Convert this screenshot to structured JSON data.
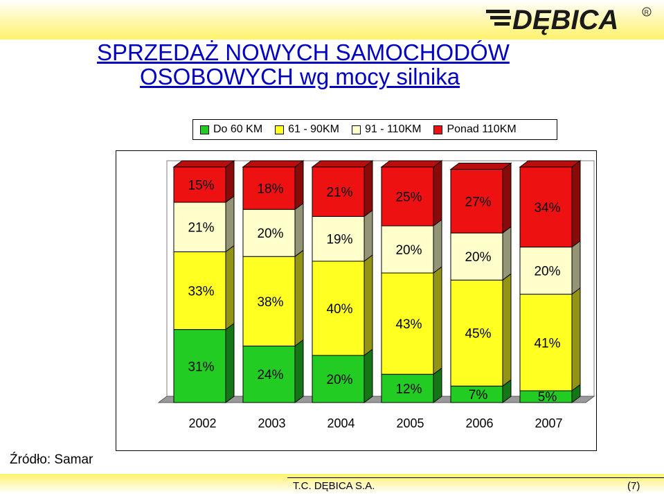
{
  "header": {
    "title_line1": "SPRZEDAŻ NOWYCH SAMOCHODÓW",
    "title_line2": "OSOBOWYCH wg mocy silnika"
  },
  "logo": {
    "text": "DĘBICA",
    "registered": "R"
  },
  "source": "Źródło: Samar",
  "footer": {
    "company": "T.C. DĘBICA S.A.",
    "page": "(7)"
  },
  "chart_data": {
    "type": "bar",
    "stacked": true,
    "normalized": true,
    "title": "",
    "xlabel": "",
    "ylabel": "",
    "legend_position": "top",
    "grid": false,
    "ylim": [
      0,
      100
    ],
    "categories": [
      "2002",
      "2003",
      "2004",
      "2005",
      "2006",
      "2007"
    ],
    "series": [
      {
        "name": "Do 60 KM",
        "color": "#22cc22",
        "values": [
          31,
          24,
          20,
          12,
          7,
          5
        ],
        "labels": [
          "31%",
          "24%",
          "20%",
          "12%",
          "7%",
          "5%"
        ]
      },
      {
        "name": "61 - 90KM",
        "color": "#ffff22",
        "values": [
          33,
          38,
          40,
          43,
          45,
          41
        ],
        "labels": [
          "33%",
          "38%",
          "40%",
          "43%",
          "45%",
          "41%"
        ]
      },
      {
        "name": "91 - 110KM",
        "color": "#ffffcc",
        "values": [
          21,
          20,
          19,
          20,
          20,
          20
        ],
        "labels": [
          "21%",
          "20%",
          "19%",
          "20%",
          "20%",
          "20%"
        ]
      },
      {
        "name": "Ponad 110KM",
        "color": "#ee1111",
        "values": [
          15,
          18,
          21,
          25,
          27,
          34
        ],
        "labels": [
          "15%",
          "18%",
          "21%",
          "25%",
          "27%",
          "34%"
        ]
      }
    ]
  }
}
